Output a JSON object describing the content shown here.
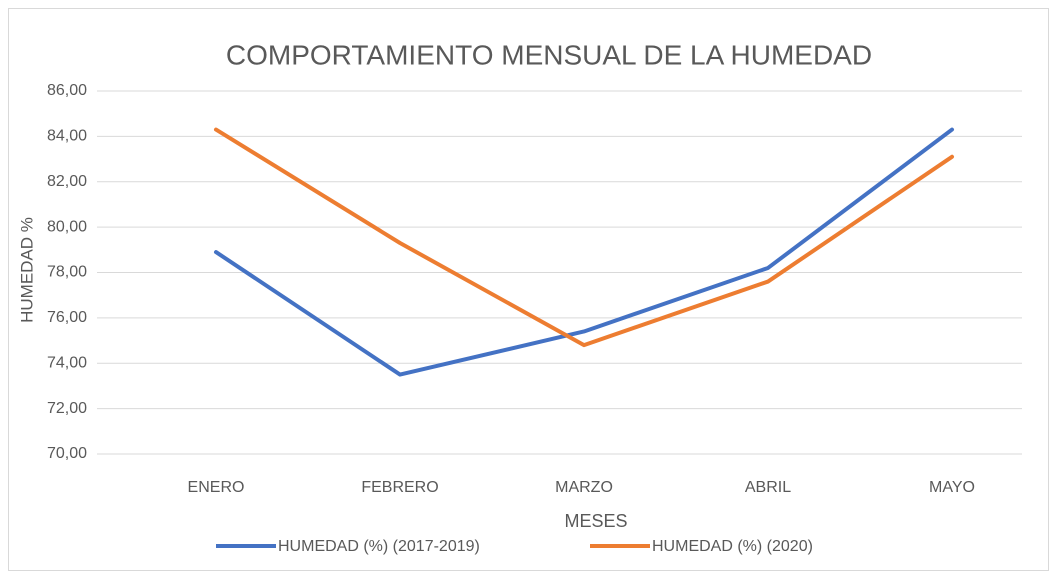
{
  "chart_data": {
    "type": "line",
    "title": "COMPORTAMIENTO MENSUAL DE LA HUMEDAD",
    "x_label": "MESES",
    "y_label": "HUMEDAD %",
    "categories": [
      "ENERO",
      "FEBRERO",
      "MARZO",
      "ABRIL",
      "MAYO"
    ],
    "series": [
      {
        "name": "HUMEDAD (%) (2017-2019)",
        "color": "#4472c4",
        "values": [
          78.9,
          73.5,
          75.4,
          78.2,
          84.3
        ]
      },
      {
        "name": "HUMEDAD (%) (2020)",
        "color": "#ed7d31",
        "values": [
          84.3,
          79.3,
          74.8,
          77.6,
          83.1
        ]
      }
    ],
    "ylim": [
      70,
      86
    ],
    "yticks": [
      {
        "value": 70,
        "label": "70,00"
      },
      {
        "value": 72,
        "label": "72,00"
      },
      {
        "value": 74,
        "label": "74,00"
      },
      {
        "value": 76,
        "label": "76,00"
      },
      {
        "value": 78,
        "label": "78,00"
      },
      {
        "value": 80,
        "label": "80,00"
      },
      {
        "value": 82,
        "label": "82,00"
      },
      {
        "value": 84,
        "label": "84,00"
      },
      {
        "value": 86,
        "label": "86,00"
      }
    ],
    "grid": true,
    "legend": "bottom"
  }
}
